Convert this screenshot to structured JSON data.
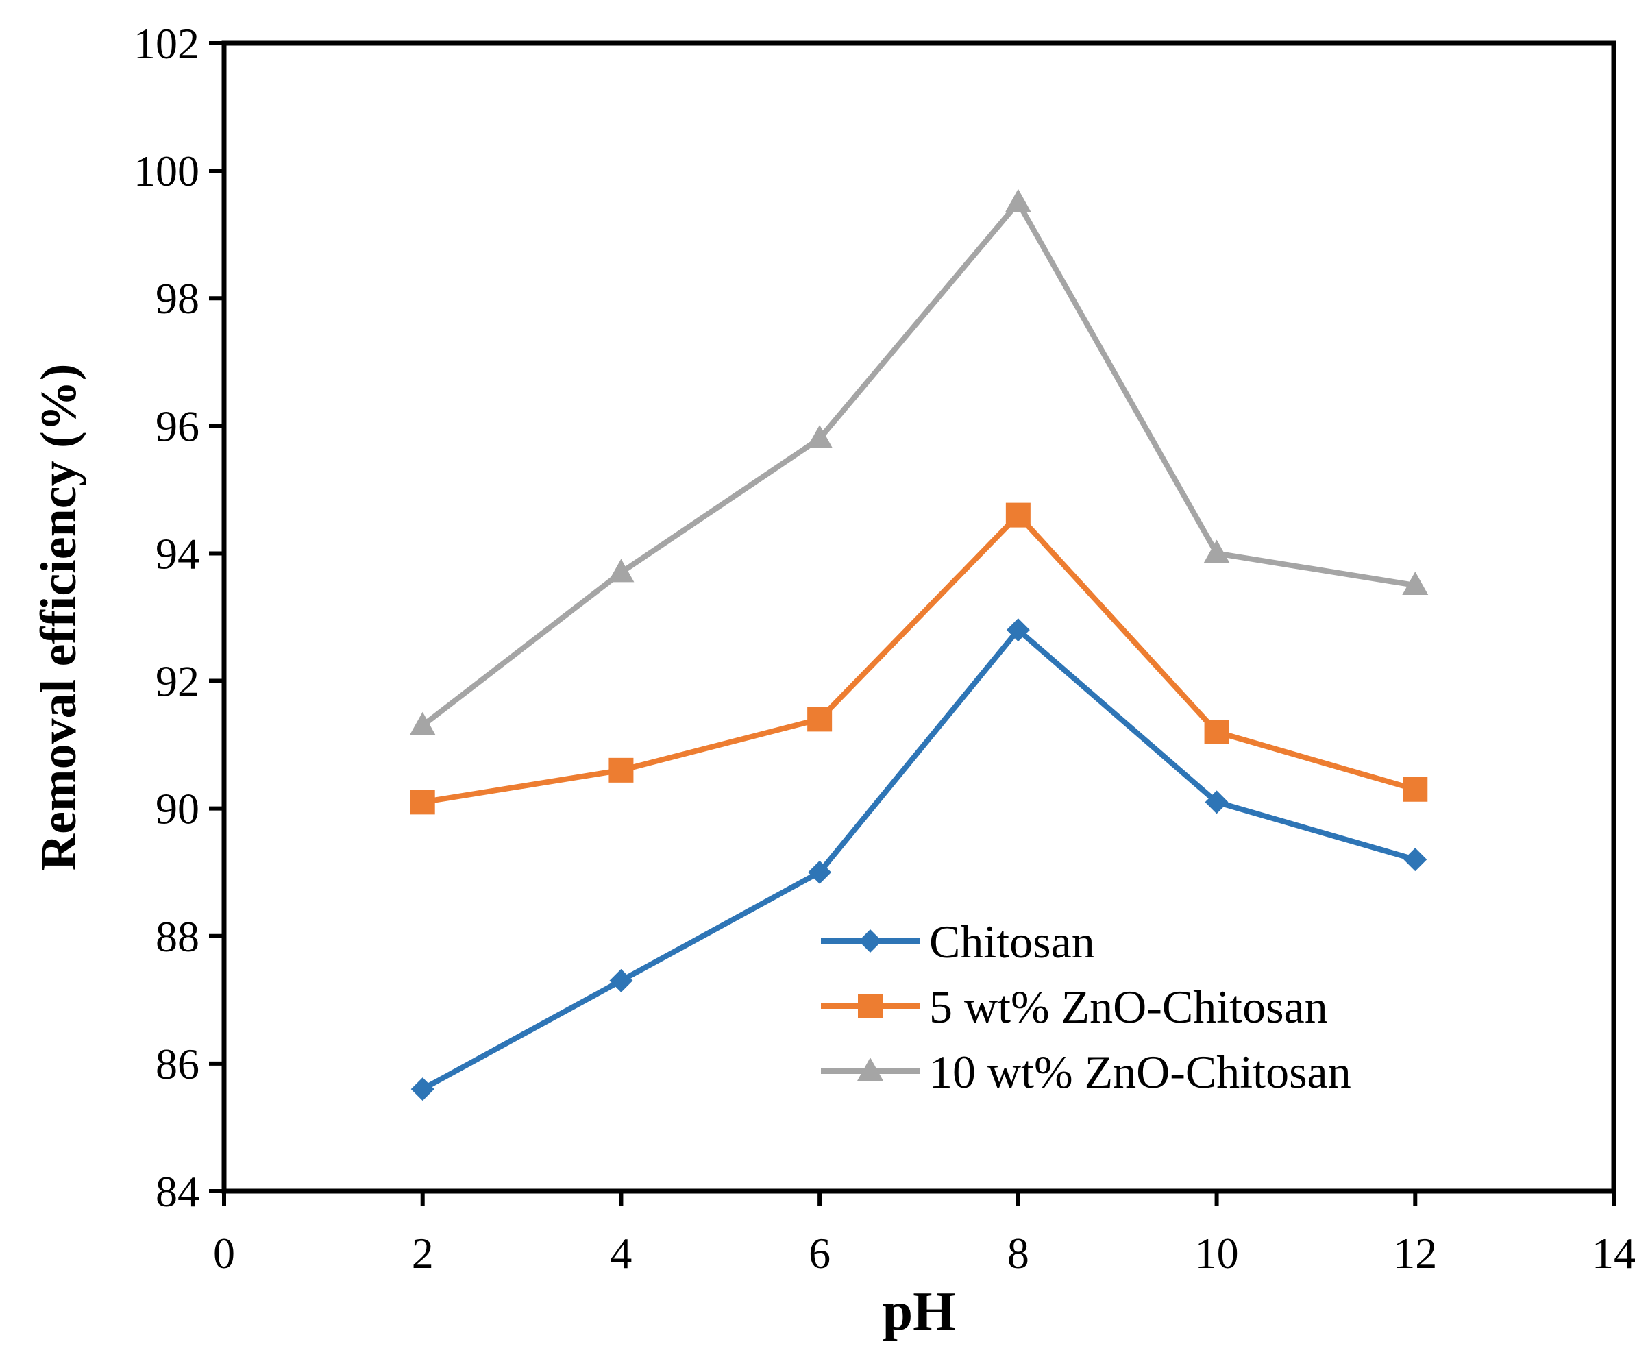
{
  "chart_data": {
    "type": "line",
    "title": "",
    "xlabel": "pH",
    "ylabel": "Removal efficiency (%)",
    "xlim": [
      0,
      14
    ],
    "ylim": [
      84,
      102
    ],
    "xticks": [
      0,
      2,
      4,
      6,
      8,
      10,
      12,
      14
    ],
    "yticks": [
      84,
      86,
      88,
      90,
      92,
      94,
      96,
      98,
      100,
      102
    ],
    "grid": false,
    "legend_position": "bottom-right",
    "x": [
      2,
      4,
      6,
      8,
      10,
      12
    ],
    "series": [
      {
        "name": "Chitosan",
        "color": "#2E75B6",
        "marker": "diamond",
        "values": [
          85.6,
          87.3,
          89.0,
          92.8,
          90.1,
          89.2
        ]
      },
      {
        "name": "5 wt% ZnO-Chitosan",
        "color": "#ED7D31",
        "marker": "square",
        "values": [
          90.1,
          90.6,
          91.4,
          94.6,
          91.2,
          90.3
        ]
      },
      {
        "name": "10 wt% ZnO-Chitosan",
        "color": "#A5A5A5",
        "marker": "triangle",
        "values": [
          91.3,
          93.7,
          95.8,
          99.5,
          94.0,
          93.5
        ]
      }
    ]
  }
}
